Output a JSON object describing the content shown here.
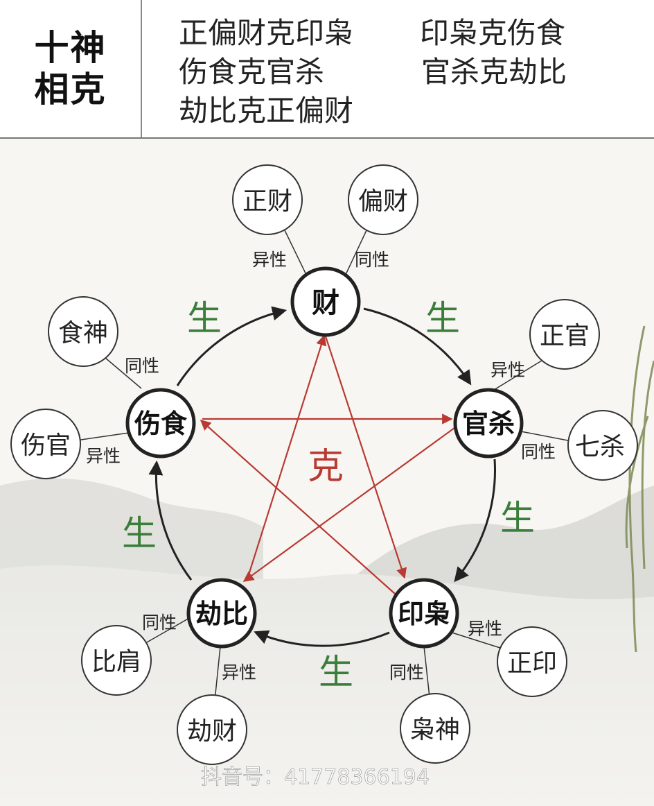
{
  "header": {
    "title_line1": "十神",
    "title_line2": "相克",
    "rules": [
      "正偏财克印枭",
      "印枭克伤食",
      "伤食克官杀",
      "官杀克劫比",
      "劫比克正偏财"
    ]
  },
  "diagram": {
    "main_nodes": {
      "cai": "财",
      "guansha": "官杀",
      "yinxiao": "印枭",
      "jiebi": "劫比",
      "shangshi": "伤食"
    },
    "sub_nodes": {
      "zhengcai": "正财",
      "piancai": "偏财",
      "zhengguan": "正官",
      "qisha": "七杀",
      "zhengyin": "正印",
      "xiaoshen": "枭神",
      "bijian": "比肩",
      "jiecai": "劫财",
      "shishen": "食神",
      "shangguan": "伤官"
    },
    "relation_labels": {
      "same": "同性",
      "different": "异性"
    },
    "sheng_label": "生",
    "ke_label": "克",
    "colors": {
      "sheng": "#3b7d3a",
      "ke": "#b83a32",
      "ring": "#222222"
    }
  },
  "watermark": "抖音号：41778366194"
}
